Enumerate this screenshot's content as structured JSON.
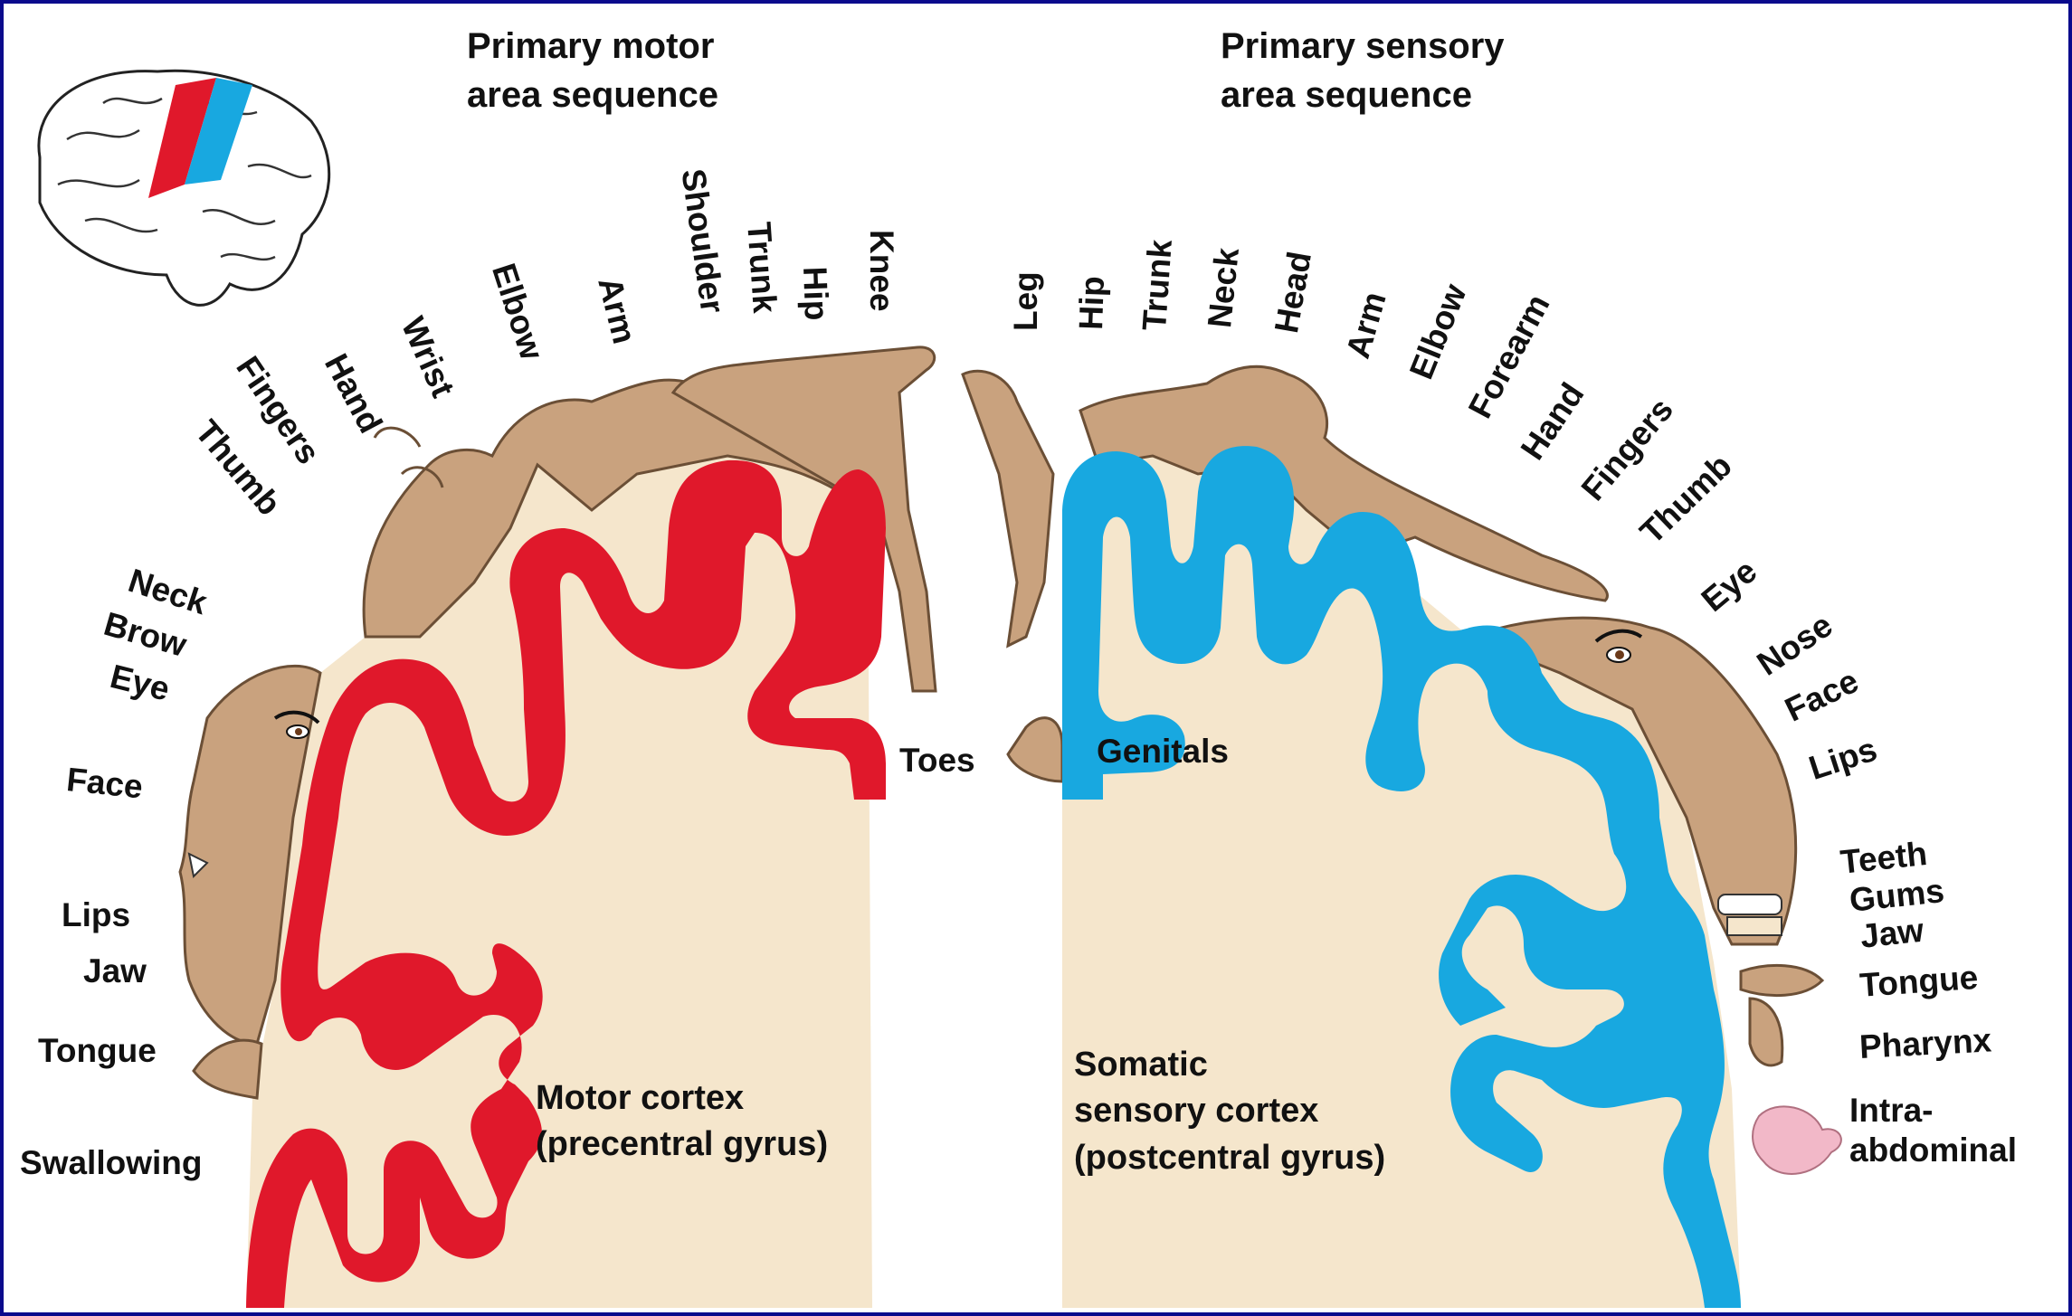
{
  "headings": {
    "motor_line1": "Primary motor",
    "motor_line2": "area sequence",
    "sensory_line1": "Primary sensory",
    "sensory_line2": "area sequence"
  },
  "captions": {
    "motor_line1": "Motor cortex",
    "motor_line2": "(precentral gyrus)",
    "sensory_line1": "Somatic",
    "sensory_line2": "sensory cortex",
    "sensory_line3": "(postcentral gyrus)"
  },
  "motor_labels": {
    "thumb": "Thumb",
    "fingers": "Fingers",
    "hand": "Hand",
    "wrist": "Wrist",
    "elbow": "Elbow",
    "arm": "Arm",
    "shoulder": "Shoulder",
    "trunk": "Trunk",
    "hip": "Hip",
    "knee": "Knee",
    "neck": "Neck",
    "brow": "Brow",
    "eye": "Eye",
    "face": "Face",
    "lips": "Lips",
    "jaw": "Jaw",
    "tongue": "Tongue",
    "swallowing": "Swallowing",
    "toes": "Toes"
  },
  "sensory_labels": {
    "leg": "Leg",
    "hip": "Hip",
    "trunk": "Trunk",
    "neck": "Neck",
    "head": "Head",
    "arm": "Arm",
    "elbow": "Elbow",
    "forearm": "Forearm",
    "hand": "Hand",
    "fingers": "Fingers",
    "thumb": "Thumb",
    "eye": "Eye",
    "nose": "Nose",
    "face": "Face",
    "lips": "Lips",
    "genitals": "Genitals",
    "teeth": "Teeth",
    "gums": "Gums",
    "jaw": "Jaw",
    "tongue": "Tongue",
    "pharynx": "Pharynx",
    "intra1": "Intra-",
    "intra2": "abdominal"
  },
  "colors": {
    "motor": "#e0182b",
    "sensory": "#18a8e0",
    "tissue": "#f5e6cc",
    "skin": "#c9a27e",
    "border": "#0a0a8c",
    "viscera": "#f2b8c8"
  }
}
